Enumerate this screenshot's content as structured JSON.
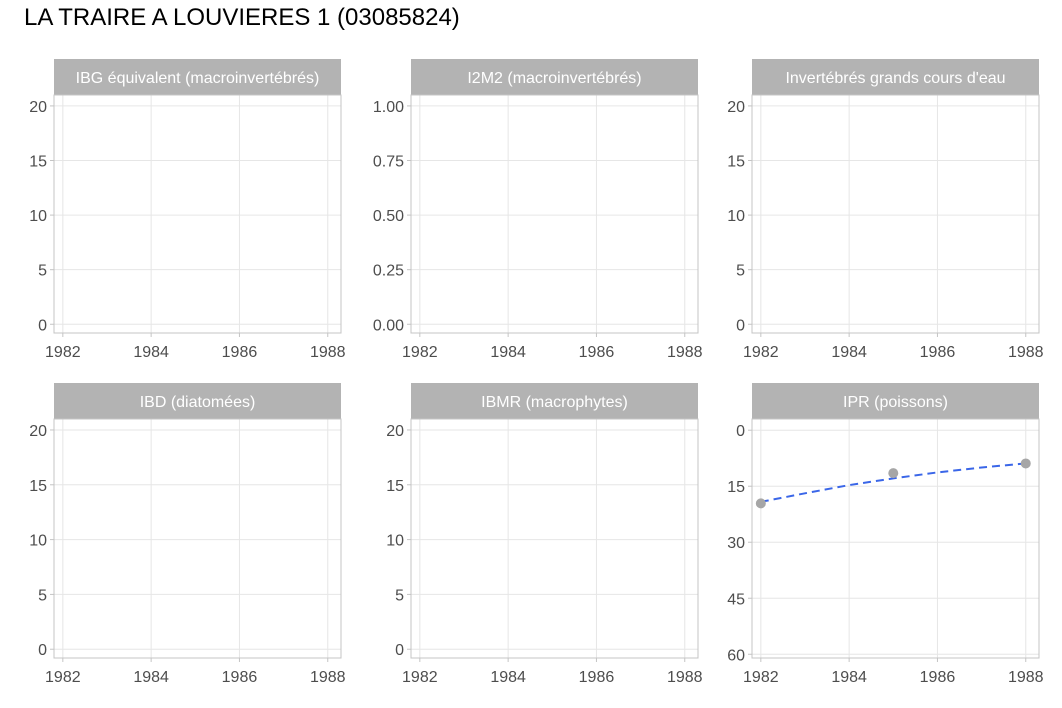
{
  "page_title": "LA TRAIRE A LOUVIERES 1 (03085824)",
  "styles": {
    "strip_bg": "#b3b3b3",
    "strip_text": "#ffffff",
    "panel_border": "#c4c4c4",
    "gridline": "#e6e6e6",
    "tick_text": "#4d4d4d",
    "point_color": "#a6a6a6",
    "trend_color": "#3a66e8"
  },
  "chart_data": [
    {
      "type": "scatter",
      "title": "IBG équivalent (macroinvertébrés)",
      "xlim": [
        1981.8,
        1988.3
      ],
      "ylim": [
        -0.8,
        21
      ],
      "x_ticks": [
        1982,
        1984,
        1986,
        1988
      ],
      "y_ticks": [
        0,
        5,
        10,
        15,
        20
      ],
      "y_tick_labels": [
        "0",
        "5",
        "10",
        "15",
        "20"
      ],
      "reversed_y": false,
      "grid": true,
      "series": []
    },
    {
      "type": "scatter",
      "title": "I2M2 (macroinvertébrés)",
      "xlim": [
        1981.8,
        1988.3
      ],
      "ylim": [
        -0.04,
        1.05
      ],
      "x_ticks": [
        1982,
        1984,
        1986,
        1988
      ],
      "y_ticks": [
        0,
        0.25,
        0.5,
        0.75,
        1
      ],
      "y_tick_labels": [
        "0.00",
        "0.25",
        "0.50",
        "0.75",
        "1.00"
      ],
      "reversed_y": false,
      "grid": true,
      "series": []
    },
    {
      "type": "scatter",
      "title": "Invertébrés grands cours d'eau",
      "xlim": [
        1981.8,
        1988.3
      ],
      "ylim": [
        -0.8,
        21
      ],
      "x_ticks": [
        1982,
        1984,
        1986,
        1988
      ],
      "y_ticks": [
        0,
        5,
        10,
        15,
        20
      ],
      "y_tick_labels": [
        "0",
        "5",
        "10",
        "15",
        "20"
      ],
      "reversed_y": false,
      "grid": true,
      "series": []
    },
    {
      "type": "scatter",
      "title": "IBD (diatomées)",
      "xlim": [
        1981.8,
        1988.3
      ],
      "ylim": [
        -0.8,
        21
      ],
      "x_ticks": [
        1982,
        1984,
        1986,
        1988
      ],
      "y_ticks": [
        0,
        5,
        10,
        15,
        20
      ],
      "y_tick_labels": [
        "0",
        "5",
        "10",
        "15",
        "20"
      ],
      "reversed_y": false,
      "grid": true,
      "series": []
    },
    {
      "type": "scatter",
      "title": "IBMR (macrophytes)",
      "xlim": [
        1981.8,
        1988.3
      ],
      "ylim": [
        -0.8,
        21
      ],
      "x_ticks": [
        1982,
        1984,
        1986,
        1988
      ],
      "y_ticks": [
        0,
        5,
        10,
        15,
        20
      ],
      "y_tick_labels": [
        "0",
        "5",
        "10",
        "15",
        "20"
      ],
      "reversed_y": false,
      "grid": true,
      "series": []
    },
    {
      "type": "scatter",
      "title": "IPR (poissons)",
      "xlim": [
        1981.8,
        1988.3
      ],
      "ylim": [
        -3,
        61
      ],
      "x_ticks": [
        1982,
        1984,
        1986,
        1988
      ],
      "y_ticks": [
        0,
        15,
        30,
        45,
        60
      ],
      "y_tick_labels": [
        "0",
        "15",
        "30",
        "45",
        "60"
      ],
      "reversed_y": true,
      "grid": true,
      "series": [
        {
          "x": [
            1982,
            1985,
            1988
          ],
          "y": [
            19.6,
            11.5,
            8.9
          ]
        }
      ],
      "trend": {
        "x": [
          1982,
          1983,
          1984,
          1985,
          1986,
          1987,
          1988
        ],
        "y": [
          19.2,
          16.9,
          14.7,
          12.9,
          11.3,
          10.0,
          8.9
        ]
      }
    }
  ]
}
